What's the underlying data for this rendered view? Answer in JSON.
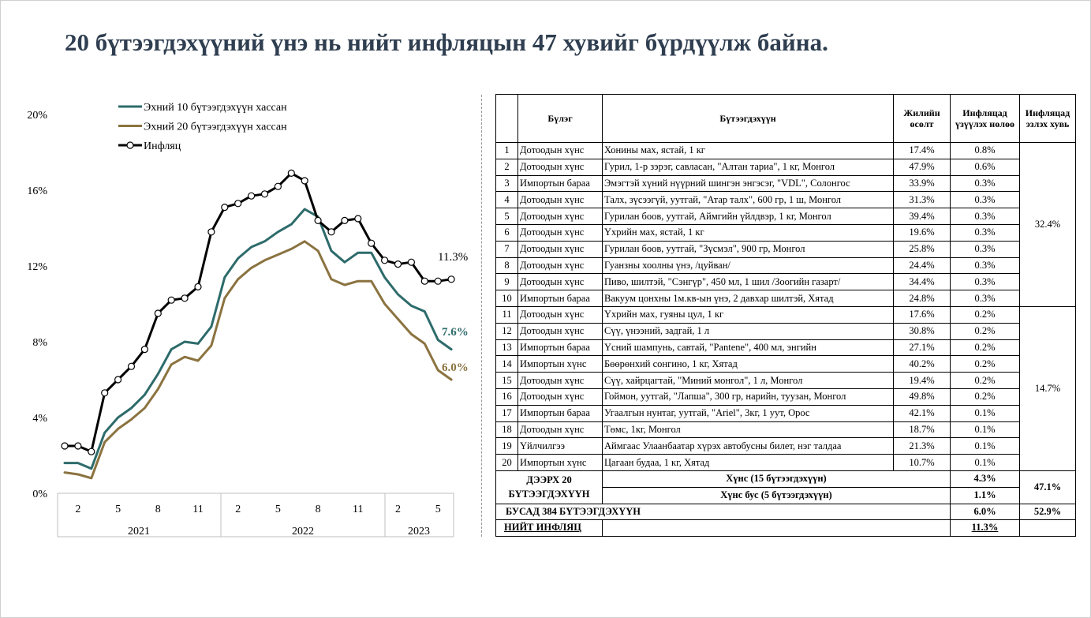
{
  "title": "20 бүтээгдэхүүний үнэ нь нийт инфляцын 47 хувийг бүрдүүлж байна.",
  "chart_data": {
    "type": "line",
    "yticks": [
      "0%",
      "4%",
      "8%",
      "12%",
      "16%",
      "20%"
    ],
    "ylim": [
      0,
      20
    ],
    "xticks": [
      "2",
      "5",
      "8",
      "11",
      "2",
      "5",
      "8",
      "11",
      "2",
      "5"
    ],
    "years": [
      "2021",
      "2022",
      "2023"
    ],
    "legend_position": "top-left",
    "series": [
      {
        "name": "Эхний 10 бүтээгдэхүүн хассан",
        "color": "#2e6b6b",
        "values": [
          1.6,
          1.6,
          1.3,
          3.2,
          4.0,
          4.5,
          5.2,
          6.3,
          7.6,
          8.0,
          7.9,
          8.8,
          11.4,
          12.4,
          13.0,
          13.3,
          13.8,
          14.2,
          15.0,
          14.6,
          12.8,
          12.2,
          12.7,
          12.7,
          11.4,
          10.5,
          9.9,
          9.6,
          8.1,
          7.6
        ],
        "end_label": "7.6%"
      },
      {
        "name": "Эхний 20 бүтээгдэхүүн хассан",
        "color": "#8b7340",
        "values": [
          1.1,
          1.0,
          0.8,
          2.7,
          3.4,
          3.9,
          4.5,
          5.5,
          6.8,
          7.2,
          7.0,
          7.8,
          10.3,
          11.3,
          11.9,
          12.3,
          12.6,
          12.9,
          13.3,
          12.8,
          11.3,
          11.0,
          11.2,
          11.2,
          10.0,
          9.2,
          8.4,
          7.9,
          6.5,
          6.0
        ],
        "end_label": "6.0%"
      },
      {
        "name": "Инфляц",
        "color": "#000000",
        "values": [
          2.5,
          2.5,
          2.2,
          5.3,
          6.0,
          6.7,
          7.6,
          9.5,
          10.2,
          10.3,
          10.9,
          13.8,
          15.1,
          15.3,
          15.7,
          15.8,
          16.2,
          16.9,
          16.5,
          14.4,
          13.8,
          14.4,
          14.5,
          13.2,
          12.3,
          12.1,
          12.2,
          11.2,
          11.2,
          11.3
        ],
        "end_label": "11.3%"
      }
    ]
  },
  "table": {
    "headers": [
      "Бүлэг",
      "Бүтээгдэхүүн",
      "Жилийн өсөлт",
      "Инфляцад үзүүлэх нөлөө",
      "Инфляцад эзлэх хувь"
    ],
    "rows": [
      {
        "n": "1",
        "group": "Дотоодын хүнс",
        "product": "Хонины мах, ястай, 1 кг",
        "growth": "17.4%",
        "impact": "0.8%"
      },
      {
        "n": "2",
        "group": "Дотоодын хүнс",
        "product": "Гурил, 1-р зэрэг, савласан,  \"Алтан тариа\", 1 кг, Монгол",
        "growth": "47.9%",
        "impact": "0.6%"
      },
      {
        "n": "3",
        "group": "Импортын бараа",
        "product": "Эмэгтэй хүний нүүрний шингэн энгэсэг, \"VDL\", Солонгос",
        "growth": "33.9%",
        "impact": "0.3%"
      },
      {
        "n": "4",
        "group": "Дотоодын хүнс",
        "product": "Талх, зүсээгүй, уутгай, \"Атар талх\", 600 гр, 1 ш, Монгол",
        "growth": "31.3%",
        "impact": "0.3%"
      },
      {
        "n": "5",
        "group": "Дотоодын хүнс",
        "product": "Гурилан боов, уутгай, Аймгийн үйлдвэр, 1 кг, Монгол",
        "growth": "39.4%",
        "impact": "0.3%"
      },
      {
        "n": "6",
        "group": "Дотоодын хүнс",
        "product": "Үхрийн мах, ястай, 1 кг",
        "growth": "19.6%",
        "impact": "0.3%"
      },
      {
        "n": "7",
        "group": "Дотоодын хүнс",
        "product": "Гурилан боов, уутгай, \"Зүсмэл\", 900 гр, Монгол",
        "growth": "25.8%",
        "impact": "0.3%"
      },
      {
        "n": "8",
        "group": "Дотоодын хүнс",
        "product": "Гуанзны хоолны үнэ, /цуйван/",
        "growth": "24.4%",
        "impact": "0.3%"
      },
      {
        "n": "9",
        "group": "Дотоодын хүнс",
        "product": "Пиво, шилтэй, \"Сэнгүр\", 450 мл, 1 шил /Зоогийн газарт/",
        "growth": "34.4%",
        "impact": "0.3%"
      },
      {
        "n": "10",
        "group": "Импортын бараа",
        "product": "Вакуум цонхны 1м.кв-ын үнэ,  2 давхар шилтэй, Хятад",
        "growth": "24.8%",
        "impact": "0.3%"
      },
      {
        "n": "11",
        "group": "Дотоодын хүнс",
        "product": "Үхрийн мах, гуяны цул, 1 кг",
        "growth": "17.6%",
        "impact": "0.2%"
      },
      {
        "n": "12",
        "group": "Дотоодын хүнс",
        "product": "Сүү, үнээний, задгай, 1 л",
        "growth": "30.8%",
        "impact": "0.2%"
      },
      {
        "n": "13",
        "group": "Импортын бараа",
        "product": "Үсний шампунь, савтай, \"Pantene\", 400 мл, энгийн",
        "growth": "27.1%",
        "impact": "0.2%"
      },
      {
        "n": "14",
        "group": "Импортын хүнс",
        "product": "Бөөрөнхий сонгино, 1 кг, Хятад",
        "growth": "40.2%",
        "impact": "0.2%"
      },
      {
        "n": "15",
        "group": "Дотоодын хүнс",
        "product": "Сүү, хайрцагтай, \"Миний монгол\", 1 л, Монгол",
        "growth": "19.4%",
        "impact": "0.2%"
      },
      {
        "n": "16",
        "group": "Дотоодын хүнс",
        "product": "Гоймон, уутгай, \"Лапша\", 300 гр, нарийн, туузан, Монгол",
        "growth": "49.8%",
        "impact": "0.2%"
      },
      {
        "n": "17",
        "group": "Импортын бараа",
        "product": "Угаалгын нунтаг, уутгай, \"Ariel\", 3кг, 1 уут, Орос",
        "growth": "42.1%",
        "impact": "0.1%"
      },
      {
        "n": "18",
        "group": "Дотоодын хүнс",
        "product": "Төмс, 1кг, Монгол",
        "growth": "18.7%",
        "impact": "0.1%"
      },
      {
        "n": "19",
        "group": "Үйлчилгээ",
        "product": "Аймгаас Улаанбаатар хүрэх автобусны билет, нэг талдаа",
        "growth": "21.3%",
        "impact": "0.1%"
      },
      {
        "n": "20",
        "group": "Импортын хүнс",
        "product": "Цагаан будаа, 1 кг, Хятад",
        "growth": "10.7%",
        "impact": "0.1%"
      }
    ],
    "share_top10": "32.4%",
    "share_next10": "14.7%",
    "summary": {
      "top20_label": "ДЭЭРХ 20 БҮТЭЭГДЭХҮҮН",
      "food_label": "Хүнс (15 бүтээгдэхүүн)",
      "food_value": "4.3%",
      "nonfood_label": "Хүнс бус (5 бүтээгдэхүүн)",
      "nonfood_value": "1.1%",
      "top20_share": "47.1%",
      "other_label": "БУСАД 384 БҮТЭЭГДЭХҮҮН",
      "other_value": "6.0%",
      "other_share": "52.9%",
      "total_label": "НИЙТ ИНФЛЯЦ",
      "total_value": "11.3%"
    }
  }
}
